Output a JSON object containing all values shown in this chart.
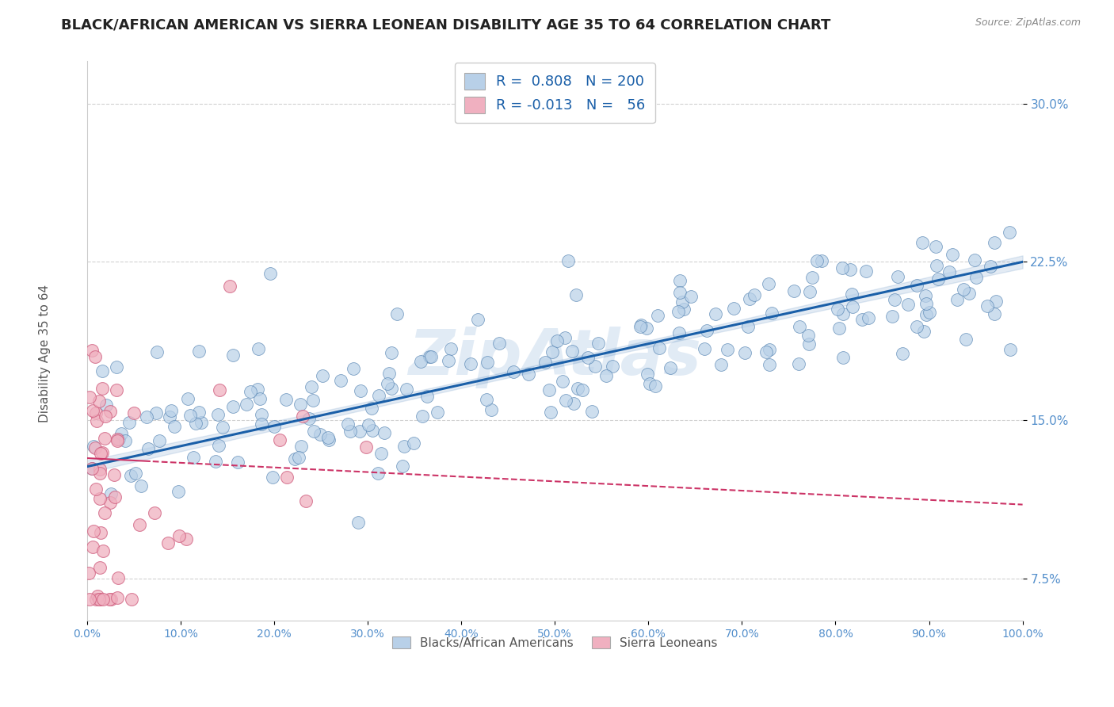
{
  "title": "BLACK/AFRICAN AMERICAN VS SIERRA LEONEAN DISABILITY AGE 35 TO 64 CORRELATION CHART",
  "source": "Source: ZipAtlas.com",
  "ylabel": "Disability Age 35 to 64",
  "xlim": [
    0,
    1.0
  ],
  "ylim": [
    0.055,
    0.32
  ],
  "xticks": [
    0.0,
    0.1,
    0.2,
    0.3,
    0.4,
    0.5,
    0.6,
    0.7,
    0.8,
    0.9,
    1.0
  ],
  "xticklabels": [
    "0.0%",
    "10.0%",
    "20.0%",
    "30.0%",
    "40.0%",
    "50.0%",
    "60.0%",
    "70.0%",
    "80.0%",
    "90.0%",
    "100.0%"
  ],
  "yticks": [
    0.075,
    0.15,
    0.225,
    0.3
  ],
  "yticklabels": [
    "7.5%",
    "15.0%",
    "22.5%",
    "30.0%"
  ],
  "blue_R": 0.808,
  "blue_N": 200,
  "pink_R": -0.013,
  "pink_N": 56,
  "blue_color": "#b8d0e8",
  "blue_edge_color": "#5080b0",
  "blue_line_color": "#1a5fa8",
  "pink_color": "#f0b0c0",
  "pink_edge_color": "#d06080",
  "pink_line_color": "#cc3366",
  "background_color": "#ffffff",
  "grid_color": "#cccccc",
  "watermark": "ZipAtlas",
  "legend_label_blue": "Blacks/African Americans",
  "legend_label_pink": "Sierra Leoneans",
  "title_fontsize": 13,
  "axis_label_fontsize": 11,
  "tick_fontsize": 10,
  "blue_seed": 42,
  "pink_seed": 123,
  "blue_line_intercept": 0.128,
  "blue_line_slope": 0.097,
  "pink_line_intercept": 0.132,
  "pink_line_slope": -0.022
}
